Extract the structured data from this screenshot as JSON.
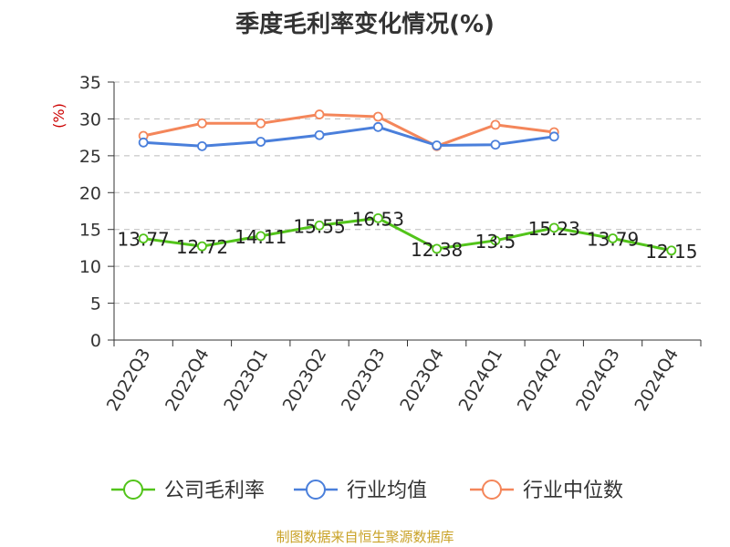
{
  "chart_data": {
    "type": "line",
    "title": "季度毛利率变化情况(%)",
    "ylabel": "(%)",
    "ylim": [
      0,
      35
    ],
    "yticks": [
      0,
      5,
      10,
      15,
      20,
      25,
      30,
      35
    ],
    "grid": true,
    "legend_position": "bottom",
    "categories": [
      "2022Q3",
      "2022Q4",
      "2023Q1",
      "2023Q2",
      "2023Q3",
      "2023Q4",
      "2024Q1",
      "2024Q2",
      "2024Q3",
      "2024Q4"
    ],
    "series": [
      {
        "name": "公司毛利率",
        "color": "#52c41a",
        "values": [
          13.77,
          12.72,
          14.11,
          15.55,
          16.53,
          12.38,
          13.5,
          15.23,
          13.79,
          12.15
        ],
        "labels": [
          "13.77",
          "12.72",
          "14.11",
          "15.55",
          "16.53",
          "12.38",
          "13.5",
          "15.23",
          "13.79",
          "12.15"
        ]
      },
      {
        "name": "行业均值",
        "color": "#4a7fdb",
        "values": [
          26.8,
          26.3,
          26.9,
          27.8,
          28.9,
          26.4,
          26.5,
          27.6,
          null,
          null
        ]
      },
      {
        "name": "行业中位数",
        "color": "#f4865a",
        "values": [
          27.7,
          29.4,
          29.4,
          30.6,
          30.3,
          26.3,
          29.2,
          28.2,
          null,
          null
        ]
      }
    ]
  },
  "footer": {
    "source": "制图数据来自恒生聚源数据库"
  }
}
